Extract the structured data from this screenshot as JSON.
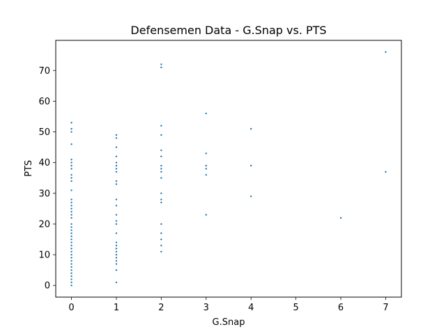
{
  "chart_data": {
    "type": "scatter",
    "title": "Defensemen Data - G.Snap vs. PTS",
    "xlabel": "G.Snap",
    "ylabel": "PTS",
    "xlim": [
      -0.35,
      7.35
    ],
    "ylim": [
      -3.8,
      79.8
    ],
    "xticks": [
      "0",
      "1",
      "2",
      "3",
      "4",
      "5",
      "6",
      "7"
    ],
    "yticks": [
      "0",
      "10",
      "20",
      "30",
      "40",
      "50",
      "60",
      "70"
    ],
    "grid": false,
    "marker_color": "#1f77b4",
    "points": [
      [
        0,
        0
      ],
      [
        0,
        1
      ],
      [
        0,
        2
      ],
      [
        0,
        3
      ],
      [
        0,
        4
      ],
      [
        0,
        5
      ],
      [
        0,
        6
      ],
      [
        0,
        7
      ],
      [
        0,
        8
      ],
      [
        0,
        9
      ],
      [
        0,
        10
      ],
      [
        0,
        11
      ],
      [
        0,
        12
      ],
      [
        0,
        13
      ],
      [
        0,
        14
      ],
      [
        0,
        15
      ],
      [
        0,
        16
      ],
      [
        0,
        17
      ],
      [
        0,
        18
      ],
      [
        0,
        19
      ],
      [
        0,
        20
      ],
      [
        0,
        22
      ],
      [
        0,
        23
      ],
      [
        0,
        24
      ],
      [
        0,
        25
      ],
      [
        0,
        26
      ],
      [
        0,
        27
      ],
      [
        0,
        28
      ],
      [
        0,
        31
      ],
      [
        0,
        34
      ],
      [
        0,
        35
      ],
      [
        0,
        36
      ],
      [
        0,
        38
      ],
      [
        0,
        39
      ],
      [
        0,
        40
      ],
      [
        0,
        41
      ],
      [
        0,
        46
      ],
      [
        0,
        50
      ],
      [
        0,
        51
      ],
      [
        0,
        53
      ],
      [
        1,
        1
      ],
      [
        1,
        5
      ],
      [
        1,
        7
      ],
      [
        1,
        8
      ],
      [
        1,
        9
      ],
      [
        1,
        10
      ],
      [
        1,
        11
      ],
      [
        1,
        12
      ],
      [
        1,
        13
      ],
      [
        1,
        14
      ],
      [
        1,
        17
      ],
      [
        1,
        20
      ],
      [
        1,
        21
      ],
      [
        1,
        23
      ],
      [
        1,
        26
      ],
      [
        1,
        28
      ],
      [
        1,
        33
      ],
      [
        1,
        34
      ],
      [
        1,
        37
      ],
      [
        1,
        38
      ],
      [
        1,
        39
      ],
      [
        1,
        40
      ],
      [
        1,
        42
      ],
      [
        1,
        45
      ],
      [
        1,
        48
      ],
      [
        1,
        49
      ],
      [
        2,
        11
      ],
      [
        2,
        13
      ],
      [
        2,
        15
      ],
      [
        2,
        17
      ],
      [
        2,
        20
      ],
      [
        2,
        27
      ],
      [
        2,
        28
      ],
      [
        2,
        30
      ],
      [
        2,
        35
      ],
      [
        2,
        37
      ],
      [
        2,
        38
      ],
      [
        2,
        39
      ],
      [
        2,
        42
      ],
      [
        2,
        44
      ],
      [
        2,
        49
      ],
      [
        2,
        52
      ],
      [
        2,
        71
      ],
      [
        2,
        72
      ],
      [
        3,
        23
      ],
      [
        3,
        36
      ],
      [
        3,
        38
      ],
      [
        3,
        39
      ],
      [
        3,
        43
      ],
      [
        3,
        56
      ],
      [
        4,
        29
      ],
      [
        4,
        39
      ],
      [
        4,
        51
      ],
      [
        6,
        22
      ],
      [
        7,
        37
      ],
      [
        7,
        76
      ]
    ]
  }
}
